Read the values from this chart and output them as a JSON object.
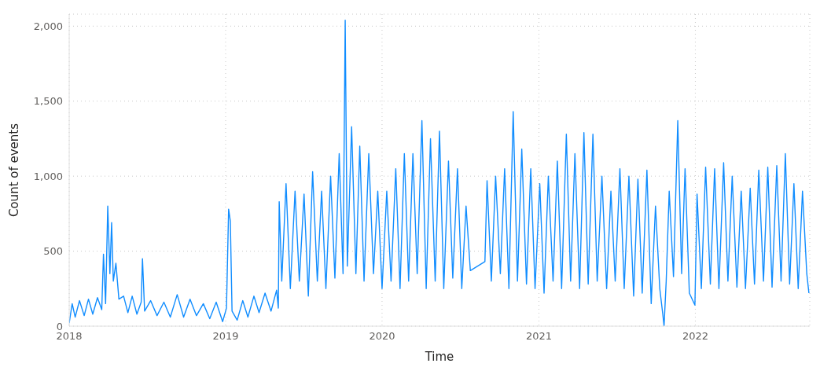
{
  "chart_data": {
    "type": "line",
    "xlabel": "Time",
    "ylabel": "Count of events",
    "color": "#118dff",
    "grid": true,
    "legend": false,
    "marker": "none",
    "line_style": "solid",
    "xlim": [
      "2018-01-01",
      "2022-09-25"
    ],
    "xticks": [
      "2018",
      "2019",
      "2020",
      "2021",
      "2022"
    ],
    "ylim": [
      0,
      2080
    ],
    "yticks": [
      0,
      500,
      {
        "value": 1000,
        "label": "1,000"
      },
      {
        "value": 1500,
        "label": "1,500"
      },
      {
        "value": 2000,
        "label": "2,000"
      }
    ],
    "x": [
      "2018-01-01",
      "2018-01-08",
      "2018-01-15",
      "2018-01-25",
      "2018-02-05",
      "2018-02-15",
      "2018-02-25",
      "2018-03-08",
      "2018-03-18",
      "2018-03-22",
      "2018-03-27",
      "2018-04-01",
      "2018-04-06",
      "2018-04-10",
      "2018-04-14",
      "2018-04-20",
      "2018-04-27",
      "2018-05-08",
      "2018-05-18",
      "2018-05-28",
      "2018-06-08",
      "2018-06-18",
      "2018-06-21",
      "2018-06-26",
      "2018-07-10",
      "2018-07-25",
      "2018-08-10",
      "2018-08-25",
      "2018-09-10",
      "2018-09-25",
      "2018-10-10",
      "2018-10-25",
      "2018-11-10",
      "2018-11-25",
      "2018-12-10",
      "2018-12-25",
      "2019-01-03",
      "2019-01-08",
      "2019-01-12",
      "2019-01-16",
      "2019-01-28",
      "2019-02-10",
      "2019-02-22",
      "2019-03-08",
      "2019-03-20",
      "2019-04-03",
      "2019-04-17",
      "2019-04-30",
      "2019-05-04",
      "2019-05-06",
      "2019-05-12",
      "2019-05-22",
      "2019-06-01",
      "2019-06-12",
      "2019-06-22",
      "2019-07-03",
      "2019-07-13",
      "2019-07-23",
      "2019-08-03",
      "2019-08-13",
      "2019-08-23",
      "2019-09-03",
      "2019-09-13",
      "2019-09-23",
      "2019-10-02",
      "2019-10-07",
      "2019-10-12",
      "2019-10-22",
      "2019-11-01",
      "2019-11-10",
      "2019-11-20",
      "2019-12-01",
      "2019-12-12",
      "2019-12-22",
      "2020-01-01",
      "2020-01-12",
      "2020-01-22",
      "2020-02-02",
      "2020-02-12",
      "2020-02-22",
      "2020-03-03",
      "2020-03-13",
      "2020-03-23",
      "2020-04-03",
      "2020-04-13",
      "2020-04-23",
      "2020-05-04",
      "2020-05-14",
      "2020-05-24",
      "2020-06-04",
      "2020-06-14",
      "2020-06-25",
      "2020-07-05",
      "2020-07-15",
      "2020-07-25",
      "2020-08-28",
      "2020-09-02",
      "2020-09-12",
      "2020-09-22",
      "2020-10-03",
      "2020-10-13",
      "2020-10-23",
      "2020-11-02",
      "2020-11-12",
      "2020-11-22",
      "2020-12-03",
      "2020-12-13",
      "2020-12-23",
      "2021-01-03",
      "2021-01-13",
      "2021-01-23",
      "2021-02-03",
      "2021-02-13",
      "2021-02-23",
      "2021-03-06",
      "2021-03-16",
      "2021-03-26",
      "2021-04-06",
      "2021-04-16",
      "2021-04-26",
      "2021-05-07",
      "2021-05-17",
      "2021-05-28",
      "2021-06-08",
      "2021-06-18",
      "2021-06-28",
      "2021-07-09",
      "2021-07-19",
      "2021-07-30",
      "2021-08-10",
      "2021-08-20",
      "2021-08-30",
      "2021-09-10",
      "2021-09-20",
      "2021-09-30",
      "2021-10-10",
      "2021-10-17",
      "2021-10-20",
      "2021-10-25",
      "2021-11-01",
      "2021-11-11",
      "2021-11-21",
      "2021-11-30",
      "2021-12-08",
      "2021-12-18",
      "2021-12-31",
      "2022-01-05",
      "2022-01-15",
      "2022-01-25",
      "2022-02-05",
      "2022-02-15",
      "2022-02-25",
      "2022-03-08",
      "2022-03-18",
      "2022-03-28",
      "2022-04-08",
      "2022-04-18",
      "2022-04-28",
      "2022-05-09",
      "2022-05-19",
      "2022-05-29",
      "2022-06-09",
      "2022-06-19",
      "2022-06-29",
      "2022-07-10",
      "2022-07-20",
      "2022-07-30",
      "2022-08-09",
      "2022-08-19",
      "2022-08-29",
      "2022-09-08",
      "2022-09-18",
      "2022-09-23"
    ],
    "values": [
      20,
      150,
      60,
      170,
      70,
      180,
      80,
      190,
      110,
      480,
      150,
      800,
      350,
      690,
      300,
      420,
      180,
      200,
      90,
      200,
      80,
      160,
      450,
      100,
      170,
      70,
      160,
      60,
      210,
      60,
      180,
      70,
      150,
      50,
      160,
      30,
      120,
      780,
      700,
      100,
      40,
      170,
      60,
      200,
      90,
      220,
      100,
      240,
      120,
      830,
      300,
      950,
      250,
      900,
      300,
      880,
      200,
      1030,
      300,
      900,
      250,
      1000,
      320,
      1150,
      350,
      2040,
      400,
      1330,
      350,
      1200,
      300,
      1150,
      350,
      900,
      250,
      900,
      300,
      1050,
      250,
      1150,
      300,
      1150,
      350,
      1370,
      250,
      1250,
      300,
      1300,
      250,
      1100,
      320,
      1050,
      250,
      800,
      370,
      430,
      970,
      300,
      1000,
      350,
      1050,
      250,
      1430,
      300,
      1180,
      280,
      1050,
      250,
      950,
      220,
      1000,
      300,
      1100,
      250,
      1280,
      300,
      1150,
      250,
      1290,
      280,
      1280,
      300,
      1000,
      250,
      900,
      300,
      1050,
      250,
      1000,
      200,
      980,
      220,
      1040,
      150,
      800,
      250,
      80,
      0,
      300,
      900,
      330,
      1370,
      350,
      1050,
      220,
      140,
      880,
      250,
      1060,
      280,
      1050,
      250,
      1090,
      300,
      1000,
      260,
      900,
      250,
      920,
      280,
      1040,
      300,
      1060,
      260,
      1070,
      300,
      1150,
      280,
      950,
      250,
      900,
      350,
      220
    ]
  }
}
